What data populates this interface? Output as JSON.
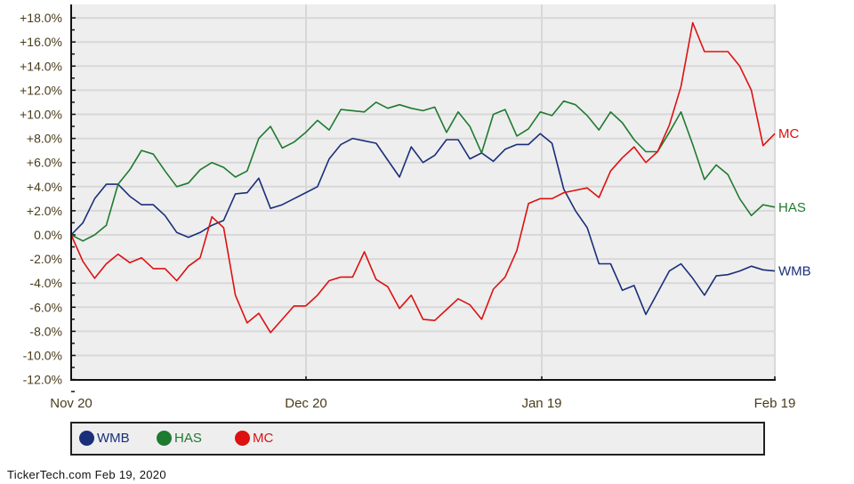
{
  "chart_data": {
    "type": "line",
    "title": "",
    "xlabel": "",
    "ylabel": "",
    "ylim": [
      -12,
      18
    ],
    "y_ticks": [
      "+18.0%",
      "+16.0%",
      "+14.0%",
      "+12.0%",
      "+10.0%",
      "+8.0%",
      "+6.0%",
      "+4.0%",
      "+2.0%",
      "0.0%",
      "-2.0%",
      "-4.0%",
      "-6.0%",
      "-8.0%",
      "-10.0%",
      "-12.0%"
    ],
    "x_ticks": [
      "Nov 20",
      "Dec 20",
      "Jan 19",
      "Feb 19"
    ],
    "grid": true,
    "legend_position": "bottom",
    "series": [
      {
        "name": "WMB",
        "color": "#1a2f7a",
        "values": [
          0.0,
          1.0,
          3.0,
          4.2,
          4.2,
          3.2,
          2.5,
          2.5,
          1.6,
          0.2,
          -0.2,
          0.2,
          0.8,
          1.2,
          3.4,
          3.5,
          4.7,
          2.2,
          2.5,
          3.0,
          3.5,
          4.0,
          6.3,
          7.5,
          8.0,
          7.8,
          7.6,
          6.2,
          4.8,
          7.3,
          6.0,
          6.6,
          7.9,
          7.9,
          6.3,
          6.8,
          6.1,
          7.1,
          7.5,
          7.5,
          8.4,
          7.6,
          3.8,
          2.0,
          0.6,
          -2.4,
          -2.4,
          -4.6,
          -4.2,
          -6.6,
          -4.8,
          -3.0,
          -2.4,
          -3.6,
          -5.0,
          -3.4,
          -3.3,
          -3.0,
          -2.6,
          -2.9,
          -3.0
        ]
      },
      {
        "name": "HAS",
        "color": "#1e7a30",
        "values": [
          0.0,
          -0.5,
          0.0,
          0.8,
          4.2,
          5.4,
          7.0,
          6.7,
          5.3,
          4.0,
          4.3,
          5.4,
          6.0,
          5.6,
          4.8,
          5.3,
          8.0,
          9.0,
          7.2,
          7.7,
          8.5,
          9.5,
          8.7,
          10.4,
          10.3,
          10.2,
          11.0,
          10.5,
          10.8,
          10.5,
          10.3,
          10.6,
          8.5,
          10.2,
          9.0,
          6.8,
          10.0,
          10.4,
          8.2,
          8.8,
          10.2,
          9.9,
          11.1,
          10.8,
          9.9,
          8.7,
          10.2,
          9.3,
          7.9,
          6.9,
          6.9,
          8.5,
          10.2,
          7.5,
          4.6,
          5.8,
          5.0,
          3.0,
          1.6,
          2.5,
          2.3
        ]
      },
      {
        "name": "MC",
        "color": "#dd1111",
        "values": [
          0.0,
          -2.2,
          -3.6,
          -2.4,
          -1.6,
          -2.3,
          -1.9,
          -2.8,
          -2.8,
          -3.8,
          -2.6,
          -1.9,
          1.5,
          0.6,
          -5.0,
          -7.3,
          -6.5,
          -8.1,
          -7.0,
          -5.9,
          -5.9,
          -5.0,
          -3.8,
          -3.5,
          -3.5,
          -1.4,
          -3.7,
          -4.3,
          -6.1,
          -5.0,
          -7.0,
          -7.1,
          -6.2,
          -5.3,
          -5.8,
          -7.0,
          -4.5,
          -3.5,
          -1.3,
          2.6,
          3.0,
          3.0,
          3.5,
          3.7,
          3.9,
          3.1,
          5.3,
          6.4,
          7.3,
          6.0,
          6.9,
          9.1,
          12.3,
          17.6,
          15.2,
          15.2,
          15.2,
          14.0,
          12.0,
          7.4,
          8.4
        ]
      }
    ]
  },
  "axes": {
    "y_labels": [
      "+18.0%",
      "+16.0%",
      "+14.0%",
      "+12.0%",
      "+10.0%",
      "+8.0%",
      "+6.0%",
      "+4.0%",
      "+2.0%",
      "0.0%",
      "-2.0%",
      "-4.0%",
      "-6.0%",
      "-8.0%",
      "-10.0%",
      "-12.0%"
    ],
    "x_labels": [
      "Nov 20",
      "Dec 20",
      "Jan 19",
      "Feb 19"
    ]
  },
  "end_labels": {
    "MC": "MC",
    "HAS": "HAS",
    "WMB": "WMB"
  },
  "legend": {
    "items": [
      {
        "label": "WMB",
        "color": "#1a2f7a"
      },
      {
        "label": "HAS",
        "color": "#1e7a30"
      },
      {
        "label": "MC",
        "color": "#dd1111"
      }
    ]
  },
  "footer": {
    "text": "TickerTech.com  Feb 19, 2020"
  }
}
